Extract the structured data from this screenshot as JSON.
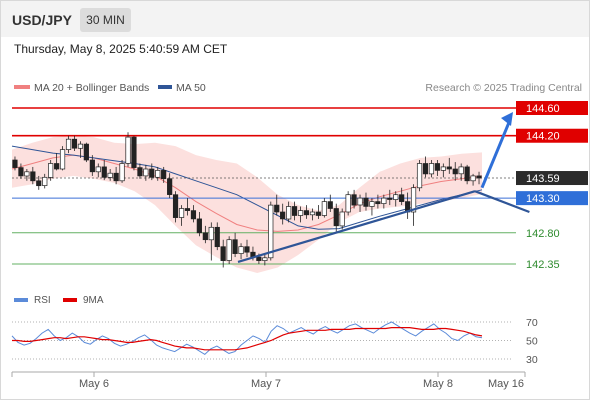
{
  "header": {
    "symbol": "USD/JPY",
    "timeframe": "30 MIN"
  },
  "timestamp": "Thursday, May 8, 2025 5:40:59 AM CET",
  "legend": [
    {
      "label": "MA 20 + Bollinger Bands",
      "color": "#f08080"
    },
    {
      "label": "MA 50",
      "color": "#2f5597"
    }
  ],
  "rsi_legend": [
    {
      "label": "RSI",
      "color": "#5b8bd9"
    },
    {
      "label": "9MA",
      "color": "#e00000"
    }
  ],
  "copyright": "Research © 2025 Trading Central",
  "chart_data": {
    "type": "candlestick",
    "price_axis": {
      "ylim": [
        142.2,
        144.8
      ]
    },
    "x_ticks": [
      "May 6",
      "May 7",
      "May 8",
      "May 16"
    ],
    "levels": [
      {
        "label": "144.60",
        "value": 144.6,
        "kind": "resistance"
      },
      {
        "label": "144.20",
        "value": 144.2,
        "kind": "resistance"
      },
      {
        "label": "143.59",
        "value": 143.59,
        "kind": "last"
      },
      {
        "label": "143.30",
        "value": 143.3,
        "kind": "pivot"
      },
      {
        "label": "142.80",
        "value": 142.8,
        "kind": "support"
      },
      {
        "label": "142.35",
        "value": 142.35,
        "kind": "support"
      }
    ],
    "candles": [
      [
        143.85,
        143.9,
        143.7,
        143.74
      ],
      [
        143.74,
        143.8,
        143.58,
        143.62
      ],
      [
        143.62,
        143.72,
        143.55,
        143.68
      ],
      [
        143.68,
        143.75,
        143.5,
        143.55
      ],
      [
        143.55,
        143.62,
        143.42,
        143.48
      ],
      [
        143.48,
        143.65,
        143.44,
        143.6
      ],
      [
        143.6,
        143.85,
        143.55,
        143.8
      ],
      [
        143.8,
        143.95,
        143.7,
        143.72
      ],
      [
        143.72,
        144.05,
        143.7,
        144.0
      ],
      [
        144.0,
        144.2,
        143.95,
        144.15
      ],
      [
        144.15,
        144.2,
        143.98,
        144.02
      ],
      [
        144.02,
        144.12,
        143.88,
        144.08
      ],
      [
        144.08,
        144.1,
        143.82,
        143.85
      ],
      [
        143.85,
        143.92,
        143.62,
        143.68
      ],
      [
        143.68,
        143.8,
        143.6,
        143.75
      ],
      [
        143.75,
        143.85,
        143.56,
        143.6
      ],
      [
        143.6,
        143.72,
        143.55,
        143.66
      ],
      [
        143.66,
        143.75,
        143.5,
        143.55
      ],
      [
        143.55,
        143.85,
        143.52,
        143.8
      ],
      [
        143.8,
        144.25,
        143.75,
        144.18
      ],
      [
        144.18,
        144.2,
        143.7,
        143.74
      ],
      [
        143.74,
        143.8,
        143.58,
        143.62
      ],
      [
        143.62,
        143.78,
        143.55,
        143.72
      ],
      [
        143.72,
        143.8,
        143.56,
        143.6
      ],
      [
        143.6,
        143.75,
        143.55,
        143.7
      ],
      [
        143.7,
        143.75,
        143.52,
        143.58
      ],
      [
        143.58,
        143.66,
        143.3,
        143.35
      ],
      [
        143.35,
        143.4,
        142.95,
        143.02
      ],
      [
        143.02,
        143.2,
        142.9,
        143.15
      ],
      [
        143.15,
        143.3,
        143.05,
        143.12
      ],
      [
        143.12,
        143.2,
        142.95,
        143.0
      ],
      [
        143.0,
        143.1,
        142.75,
        142.8
      ],
      [
        142.8,
        142.9,
        142.65,
        142.7
      ],
      [
        142.7,
        142.95,
        142.4,
        142.88
      ],
      [
        142.88,
        142.95,
        142.55,
        142.6
      ],
      [
        142.6,
        142.7,
        142.3,
        142.4
      ],
      [
        142.4,
        142.75,
        142.35,
        142.7
      ],
      [
        142.7,
        142.8,
        142.45,
        142.5
      ],
      [
        142.5,
        142.65,
        142.42,
        142.6
      ],
      [
        142.6,
        142.7,
        142.45,
        142.52
      ],
      [
        142.52,
        142.6,
        142.4,
        142.45
      ],
      [
        142.45,
        142.5,
        142.35,
        142.4
      ],
      [
        142.4,
        142.48,
        142.33,
        142.44
      ],
      [
        142.44,
        143.25,
        142.4,
        143.2
      ],
      [
        143.2,
        143.35,
        143.05,
        143.1
      ],
      [
        143.1,
        143.22,
        142.92,
        143.0
      ],
      [
        143.0,
        143.25,
        142.95,
        143.18
      ],
      [
        143.18,
        143.25,
        142.98,
        143.05
      ],
      [
        143.05,
        143.18,
        142.95,
        143.12
      ],
      [
        143.12,
        143.2,
        143.0,
        143.06
      ],
      [
        143.06,
        143.15,
        142.98,
        143.1
      ],
      [
        143.1,
        143.2,
        143.0,
        143.05
      ],
      [
        143.05,
        143.3,
        143.02,
        143.25
      ],
      [
        143.25,
        143.35,
        143.1,
        143.15
      ],
      [
        143.15,
        143.22,
        142.82,
        142.9
      ],
      [
        142.9,
        143.15,
        142.85,
        143.1
      ],
      [
        143.1,
        143.4,
        143.05,
        143.35
      ],
      [
        143.35,
        143.42,
        143.15,
        143.2
      ],
      [
        143.2,
        143.35,
        143.1,
        143.3
      ],
      [
        143.3,
        143.38,
        143.12,
        143.18
      ],
      [
        143.18,
        143.3,
        143.05,
        143.25
      ],
      [
        143.25,
        143.35,
        143.15,
        143.22
      ],
      [
        143.22,
        143.35,
        143.15,
        143.3
      ],
      [
        143.3,
        143.42,
        143.2,
        143.28
      ],
      [
        143.28,
        143.4,
        143.18,
        143.35
      ],
      [
        143.35,
        143.45,
        143.2,
        143.25
      ],
      [
        143.25,
        143.38,
        143.0,
        143.1
      ],
      [
        143.1,
        143.5,
        142.9,
        143.45
      ],
      [
        143.45,
        143.85,
        143.4,
        143.8
      ],
      [
        143.8,
        143.9,
        143.6,
        143.65
      ],
      [
        143.65,
        143.85,
        143.6,
        143.8
      ],
      [
        143.8,
        143.85,
        143.62,
        143.7
      ],
      [
        143.7,
        143.8,
        143.6,
        143.75
      ],
      [
        143.75,
        143.88,
        143.65,
        143.72
      ],
      [
        143.72,
        143.82,
        143.55,
        143.65
      ],
      [
        143.65,
        143.8,
        143.55,
        143.75
      ],
      [
        143.75,
        143.78,
        143.5,
        143.55
      ],
      [
        143.55,
        143.65,
        143.48,
        143.62
      ],
      [
        143.62,
        143.68,
        143.5,
        143.59
      ]
    ],
    "bollinger": {
      "upper": [
        144.0,
        144.1,
        144.18,
        144.2,
        144.18,
        144.1,
        144.08,
        144.1,
        144.05,
        143.92,
        143.85,
        143.8,
        143.6,
        143.35,
        143.2,
        143.12,
        143.2,
        143.45,
        143.68,
        143.8,
        143.88,
        143.9,
        143.94,
        143.96
      ],
      "lower": [
        143.45,
        143.5,
        143.58,
        143.62,
        143.58,
        143.52,
        143.4,
        143.2,
        142.9,
        142.62,
        142.45,
        142.3,
        142.22,
        142.3,
        142.48,
        142.7,
        142.95,
        143.1,
        143.15,
        143.18,
        143.22,
        143.25,
        143.3,
        143.36
      ],
      "ma20": [
        143.72,
        143.8,
        143.88,
        143.92,
        143.88,
        143.8,
        143.72,
        143.62,
        143.45,
        143.25,
        143.08,
        142.92,
        142.84,
        142.82,
        142.84,
        142.92,
        143.06,
        143.22,
        143.32,
        143.4,
        143.48,
        143.54,
        143.58,
        143.62
      ]
    },
    "ma50": [
      144.05,
      144.0,
      143.95,
      143.92,
      143.88,
      143.84,
      143.8,
      143.75,
      143.65,
      143.55,
      143.45,
      143.35,
      143.2,
      143.05,
      142.9,
      142.85,
      142.86,
      142.95,
      143.04,
      143.12,
      143.2,
      143.28,
      143.35,
      143.42
    ],
    "trendlines": [
      {
        "from": [
          0.0,
          142.38
        ],
        "to": [
          1.0,
          143.4
        ]
      },
      {
        "from": [
          0.62,
          143.1
        ],
        "to": [
          1.0,
          143.4
        ]
      }
    ],
    "projection": {
      "from": 143.45,
      "to": 144.6
    },
    "rsi": {
      "ticks": [
        70,
        50,
        30
      ],
      "ylim": [
        20,
        80
      ],
      "rsi": [
        55,
        48,
        45,
        47,
        52,
        58,
        62,
        55,
        50,
        53,
        58,
        54,
        48,
        46,
        51,
        55,
        52,
        47,
        44,
        46,
        49,
        53,
        56,
        51,
        45,
        42,
        40,
        38,
        42,
        46,
        43,
        39,
        35,
        41,
        44,
        40,
        36,
        38,
        45,
        50,
        55,
        52,
        48,
        60,
        66,
        63,
        58,
        61,
        64,
        60,
        57,
        62,
        65,
        61,
        58,
        62,
        66,
        68,
        64,
        61,
        58,
        63,
        67,
        70,
        66,
        62,
        58,
        55,
        60,
        64,
        68,
        62,
        58,
        52,
        50,
        55,
        58,
        54,
        53
      ],
      "ma": [
        50,
        50,
        49,
        49,
        50,
        51,
        52,
        53,
        53,
        52,
        53,
        54,
        54,
        53,
        52,
        51,
        51,
        50,
        49,
        48,
        48,
        49,
        50,
        51,
        50,
        48,
        46,
        44,
        43,
        42,
        42,
        41,
        40,
        40,
        40,
        40,
        40,
        40,
        41,
        42,
        44,
        46,
        48,
        50,
        53,
        56,
        58,
        59,
        60,
        61,
        61,
        61,
        61,
        62,
        62,
        62,
        62,
        63,
        63,
        63,
        63,
        63,
        63,
        64,
        64,
        64,
        64,
        63,
        62,
        62,
        62,
        63,
        63,
        62,
        61,
        60,
        58,
        56,
        55
      ]
    }
  }
}
